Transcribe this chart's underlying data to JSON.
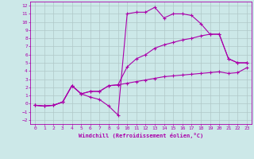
{
  "xlabel": "Windchill (Refroidissement éolien,°C)",
  "bg_color": "#cce8e8",
  "grid_color": "#b0c8c8",
  "line_color": "#aa00aa",
  "x_ticks": [
    0,
    1,
    2,
    3,
    4,
    5,
    6,
    7,
    8,
    9,
    10,
    11,
    12,
    13,
    14,
    15,
    16,
    17,
    18,
    19,
    20,
    21,
    22,
    23
  ],
  "y_ticks": [
    -2,
    -1,
    0,
    1,
    2,
    3,
    4,
    5,
    6,
    7,
    8,
    9,
    10,
    11,
    12
  ],
  "xlim": [
    -0.5,
    23.5
  ],
  "ylim": [
    -2.5,
    12.5
  ],
  "line1": {
    "x": [
      0,
      1,
      2,
      3,
      4,
      5,
      6,
      7,
      8,
      9,
      10,
      11,
      12,
      13,
      14,
      15,
      16,
      17,
      18,
      19,
      20,
      21,
      22,
      23
    ],
    "y": [
      -0.2,
      -0.3,
      -0.2,
      0.2,
      2.2,
      1.2,
      0.8,
      0.5,
      -0.3,
      -1.4,
      11.0,
      11.2,
      11.2,
      11.8,
      10.5,
      11.0,
      11.0,
      10.8,
      9.8,
      8.5,
      8.5,
      5.5,
      5.0,
      5.0
    ]
  },
  "line2": {
    "x": [
      0,
      1,
      2,
      3,
      4,
      5,
      6,
      7,
      8,
      9,
      10,
      11,
      12,
      13,
      14,
      15,
      16,
      17,
      18,
      19,
      20,
      21,
      22,
      23
    ],
    "y": [
      -0.2,
      -0.3,
      -0.2,
      0.2,
      2.2,
      1.2,
      1.5,
      1.5,
      2.2,
      2.3,
      4.5,
      5.5,
      6.0,
      6.8,
      7.2,
      7.5,
      7.8,
      8.0,
      8.3,
      8.5,
      8.5,
      5.5,
      5.0,
      5.0
    ]
  },
  "line3": {
    "x": [
      0,
      1,
      2,
      3,
      4,
      5,
      6,
      7,
      8,
      9,
      10,
      11,
      12,
      13,
      14,
      15,
      16,
      17,
      18,
      19,
      20,
      21,
      22,
      23
    ],
    "y": [
      -0.2,
      -0.3,
      -0.2,
      0.2,
      2.2,
      1.2,
      1.5,
      1.5,
      2.2,
      2.3,
      2.5,
      2.7,
      2.9,
      3.1,
      3.3,
      3.4,
      3.5,
      3.6,
      3.7,
      3.8,
      3.9,
      3.7,
      3.8,
      4.4
    ]
  }
}
